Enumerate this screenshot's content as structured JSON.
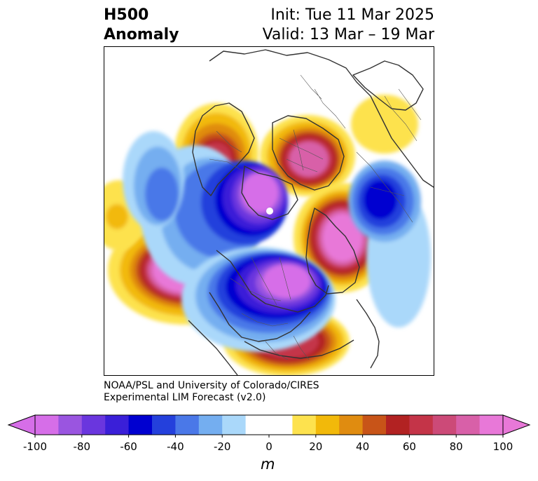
{
  "header": {
    "field": "H500",
    "type": "Anomaly",
    "init": "Init: Tue 11 Mar 2025",
    "valid": "Valid: 13 Mar – 19 Mar"
  },
  "credit": {
    "line1": "NOAA/PSL and University of Colorado/CIRES",
    "line2": "Experimental LIM Forecast (v2.0)"
  },
  "colorbar": {
    "unit": "m",
    "min": -100,
    "max": 100,
    "ticks": [
      "-100",
      "-80",
      "-60",
      "-40",
      "-20",
      "0",
      "20",
      "40",
      "60",
      "80",
      "100"
    ],
    "bins": [
      {
        "from": -100,
        "to": -90,
        "color": "#d66ee8"
      },
      {
        "from": -90,
        "to": -80,
        "color": "#9a55e0"
      },
      {
        "from": -80,
        "to": -70,
        "color": "#6a36de"
      },
      {
        "from": -70,
        "to": -60,
        "color": "#3a1fd8"
      },
      {
        "from": -60,
        "to": -50,
        "color": "#0000d0"
      },
      {
        "from": -50,
        "to": -40,
        "color": "#2440dc"
      },
      {
        "from": -40,
        "to": -30,
        "color": "#4a78e8"
      },
      {
        "from": -30,
        "to": -20,
        "color": "#74aef0"
      },
      {
        "from": -20,
        "to": -10,
        "color": "#aad8fa"
      },
      {
        "from": -10,
        "to": 10,
        "color": "#ffffff"
      },
      {
        "from": 10,
        "to": 20,
        "color": "#fde24e"
      },
      {
        "from": 20,
        "to": 30,
        "color": "#f2b90a"
      },
      {
        "from": 30,
        "to": 40,
        "color": "#e08c10"
      },
      {
        "from": 40,
        "to": 50,
        "color": "#c85418"
      },
      {
        "from": 50,
        "to": 60,
        "color": "#b22222"
      },
      {
        "from": 60,
        "to": 70,
        "color": "#c43448"
      },
      {
        "from": 70,
        "to": 80,
        "color": "#cc4a78"
      },
      {
        "from": 80,
        "to": 90,
        "color": "#d860a8"
      },
      {
        "from": 90,
        "to": 100,
        "color": "#e878d8"
      }
    ],
    "under_color": "#d66ee8",
    "over_color": "#e878d8"
  }
}
